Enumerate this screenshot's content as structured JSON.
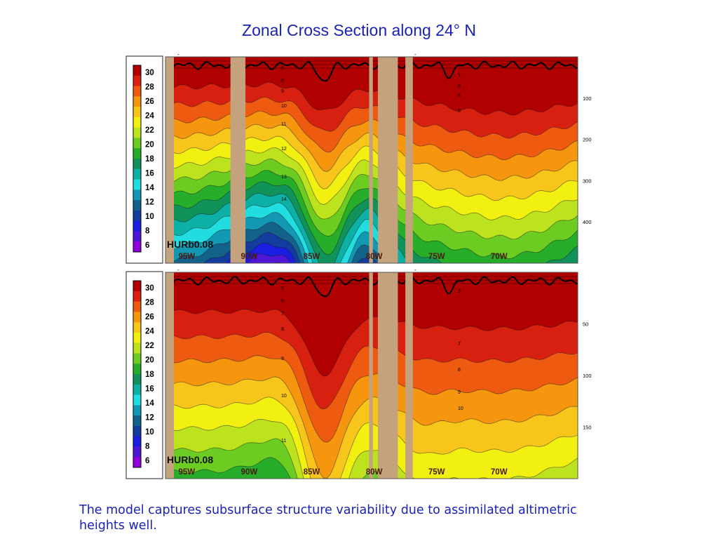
{
  "slide": {
    "title": "Zonal Cross Section along 24° N",
    "caption": "The model captures subsurface structure variability due to assimilated altimetric heights well."
  },
  "colorbar": {
    "ticks": [
      "30",
      "28",
      "26",
      "24",
      "22",
      "20",
      "18",
      "16",
      "14",
      "12",
      "10",
      "8",
      "6"
    ],
    "colors": [
      "#b00000",
      "#d82010",
      "#ee5a10",
      "#f5960e",
      "#f8c51a",
      "#f2f010",
      "#bde21e",
      "#6ccc22",
      "#26ad2a",
      "#10925a",
      "#0db0a4",
      "#22dde0",
      "#1398b4",
      "#12628a",
      "#123d9e",
      "#1a1ee0",
      "#5016d6",
      "#9000dc"
    ]
  },
  "chart_data": [
    {
      "type": "heatmap",
      "panel_label": "HURb0.08",
      "x_ticks": [
        "95W",
        "90W",
        "85W",
        "80W",
        "75W",
        "70W"
      ],
      "x_values": [
        -95,
        -90,
        -85,
        -80,
        -75,
        -70
      ],
      "depth_ticks": [
        "100",
        "200",
        "300",
        "400"
      ],
      "depth_values": [
        100,
        200,
        300,
        400
      ],
      "depth_max": 500,
      "x_range": [
        -96.7,
        -63.7
      ],
      "color_scale_range": [
        6,
        30
      ],
      "contour_labels": [
        "6",
        "8",
        "9",
        "10",
        "11",
        "12",
        "13",
        "14",
        "7",
        "8",
        "8",
        "8"
      ],
      "land_masks_lon": [
        [
          -91.5,
          -90.3
        ],
        [
          -80.4,
          -80.1
        ],
        [
          -79.7,
          -78.1
        ],
        [
          -77.5,
          -76.9
        ]
      ]
    },
    {
      "type": "heatmap",
      "panel_label": "HURb0.08",
      "x_ticks": [
        "95W",
        "90W",
        "85W",
        "80W",
        "75W",
        "70W"
      ],
      "x_values": [
        -95,
        -90,
        -85,
        -80,
        -75,
        -70
      ],
      "depth_ticks": [
        "50",
        "100",
        "150"
      ],
      "depth_values": [
        50,
        100,
        150
      ],
      "depth_max": 200,
      "x_range": [
        -96.7,
        -63.7
      ],
      "color_scale_range": [
        6,
        30
      ],
      "contour_labels": [
        "5",
        "6",
        "7",
        "8",
        "9",
        "10",
        "11",
        "5",
        "7",
        "8",
        "9",
        "10"
      ],
      "land_masks_lon": [
        [
          -80.4,
          -80.1
        ],
        [
          -79.7,
          -78.1
        ],
        [
          -77.5,
          -76.9
        ]
      ]
    }
  ]
}
